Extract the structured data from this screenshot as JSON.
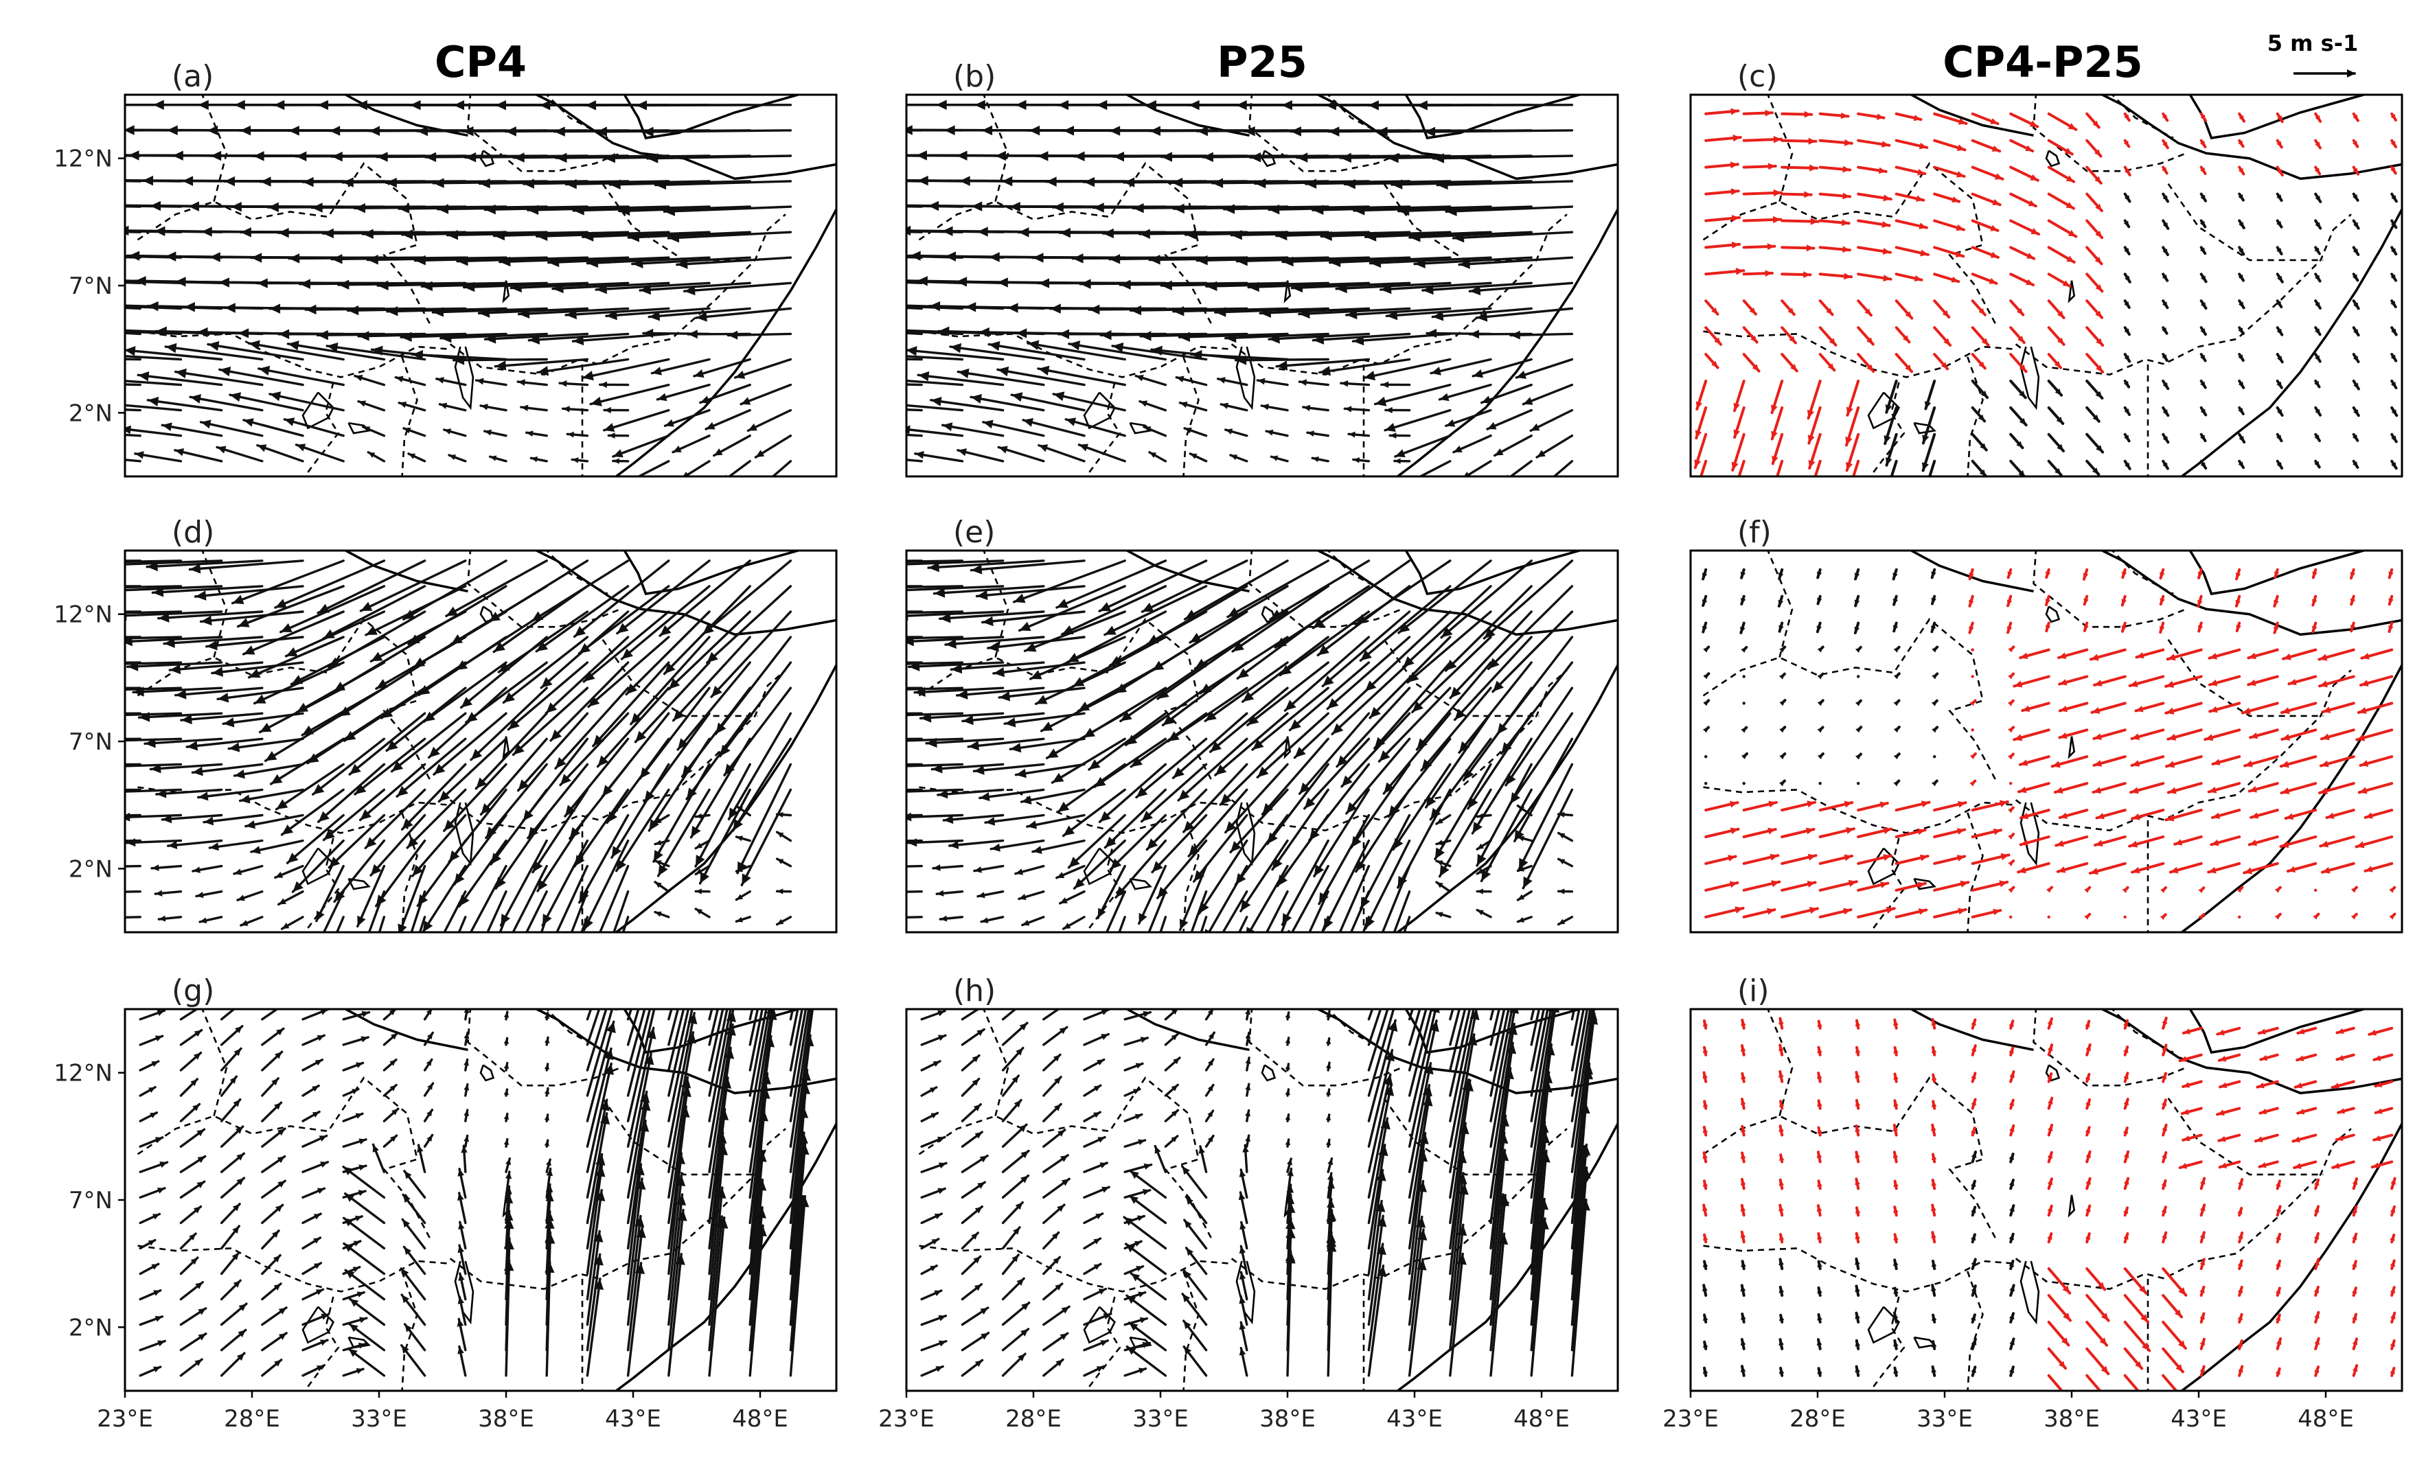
{
  "figure": {
    "column_titles": [
      "CP4",
      "P25",
      "CP4-P25"
    ],
    "reference_vector": {
      "label": "5 m s-1",
      "magnitude": 5
    },
    "colors": {
      "black_vectors": "#111111",
      "red_vectors": "#e8201a",
      "background": "#ffffff"
    }
  },
  "map": {
    "lon_range": [
      23,
      51
    ],
    "lat_range": [
      -0.5,
      14.5
    ],
    "x_ticks": [
      {
        "value": 23,
        "label": "23°E"
      },
      {
        "value": 28,
        "label": "28°E"
      },
      {
        "value": 33,
        "label": "33°E"
      },
      {
        "value": 38,
        "label": "38°E"
      },
      {
        "value": 43,
        "label": "43°E"
      },
      {
        "value": 48,
        "label": "48°E"
      }
    ],
    "y_ticks": [
      {
        "value": 12,
        "label": "12°N"
      },
      {
        "value": 7,
        "label": "7°N"
      },
      {
        "value": 2,
        "label": "2°N"
      }
    ]
  },
  "panels": [
    {
      "label": "(a)",
      "row": 0,
      "col": 0,
      "kind": "full",
      "regime": "easterly_strong"
    },
    {
      "label": "(b)",
      "row": 0,
      "col": 1,
      "kind": "full",
      "regime": "easterly_strong"
    },
    {
      "label": "(c)",
      "row": 0,
      "col": 2,
      "kind": "diff",
      "regime": "diff_a"
    },
    {
      "label": "(d)",
      "row": 1,
      "col": 0,
      "kind": "full",
      "regime": "easterly_sw"
    },
    {
      "label": "(e)",
      "row": 1,
      "col": 1,
      "kind": "full",
      "regime": "easterly_sw"
    },
    {
      "label": "(f)",
      "row": 1,
      "col": 2,
      "kind": "diff",
      "regime": "diff_b"
    },
    {
      "label": "(g)",
      "row": 2,
      "col": 0,
      "kind": "full",
      "regime": "southerly_jet"
    },
    {
      "label": "(h)",
      "row": 2,
      "col": 1,
      "kind": "full",
      "regime": "southerly_jet"
    },
    {
      "label": "(i)",
      "row": 2,
      "col": 2,
      "kind": "diff",
      "regime": "diff_c"
    }
  ]
}
